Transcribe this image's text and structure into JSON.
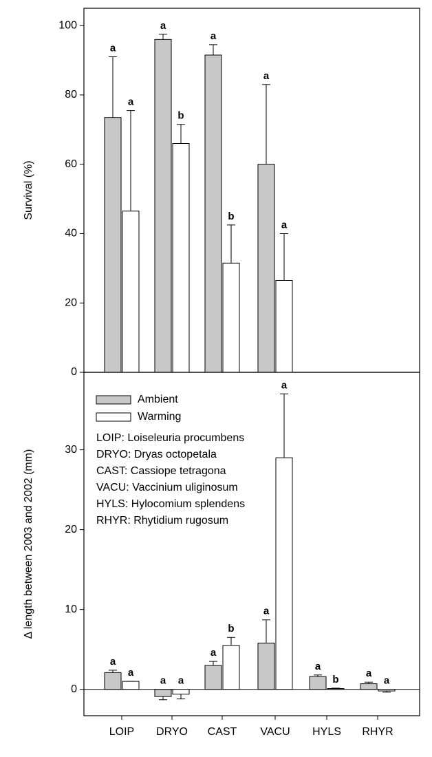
{
  "chart_data": [
    {
      "type": "bar",
      "ylabel": "Survival (%)",
      "ylim": [
        0,
        105
      ],
      "yticks": [
        0,
        20,
        40,
        60,
        80,
        100
      ],
      "series": [
        {
          "color": "#c8c8c8",
          "values": [
            73.5,
            96,
            91.5,
            60,
            null,
            null
          ],
          "errors": [
            17.5,
            1.5,
            3,
            23,
            null,
            null
          ],
          "letters": [
            "a",
            "a",
            "a",
            "a",
            null,
            null
          ]
        },
        {
          "color": "#ffffff",
          "values": [
            46.5,
            66,
            31.5,
            26.5,
            null,
            null
          ],
          "errors": [
            29,
            5.5,
            11,
            13.5,
            null,
            null
          ],
          "letters": [
            "a",
            "b",
            "b",
            "a",
            null,
            null
          ]
        }
      ]
    },
    {
      "type": "bar",
      "ylabel": "Δ length between 2003 and 2002 (mm)",
      "ylim": [
        -3.3,
        39.7
      ],
      "yticks": [
        0,
        10,
        20,
        30
      ],
      "categories": [
        "LOIP",
        "DRYO",
        "CAST",
        "VACU",
        "HYLS",
        "RHYR"
      ],
      "legend": "upper left",
      "series": [
        {
          "name": "Ambient",
          "color": "#c8c8c8",
          "values": [
            2.1,
            -0.9,
            3.0,
            5.8,
            1.6,
            0.7
          ],
          "errors": [
            0.3,
            0.4,
            0.5,
            2.9,
            0.2,
            0.2
          ],
          "letters": [
            "a",
            "a",
            "a",
            "a",
            "a",
            "a"
          ]
        },
        {
          "name": "Warming",
          "color": "#ffffff",
          "values": [
            1.0,
            -0.6,
            5.5,
            29,
            0.1,
            -0.2
          ],
          "errors": [
            0,
            0.6,
            1.0,
            8,
            0.05,
            0.15
          ],
          "letters": [
            "a",
            "a",
            "b",
            "a",
            "b",
            "a"
          ]
        }
      ],
      "annotations": [
        "LOIP: Loiseleuria procumbens",
        "DRYO: Dryas octopetala",
        "CAST: Cassiope tetragona",
        "VACU: Vaccinium uliginosum",
        "HYLS: Hylocomium splendens",
        "RHYR: Rhytidium rugosum"
      ]
    }
  ]
}
